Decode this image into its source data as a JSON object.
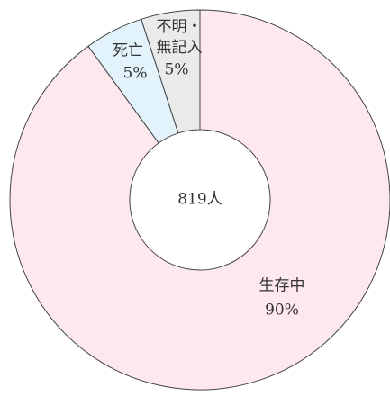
{
  "chart_data": {
    "type": "donut",
    "center_label": "819人",
    "categories": [
      "生存中",
      "死亡",
      "不明・無記入"
    ],
    "values": [
      90,
      5,
      5
    ],
    "value_labels": [
      "90%",
      "5%",
      "5%"
    ],
    "colors": [
      "#fde9ed",
      "#e2f3fb",
      "#e9eaea"
    ]
  }
}
